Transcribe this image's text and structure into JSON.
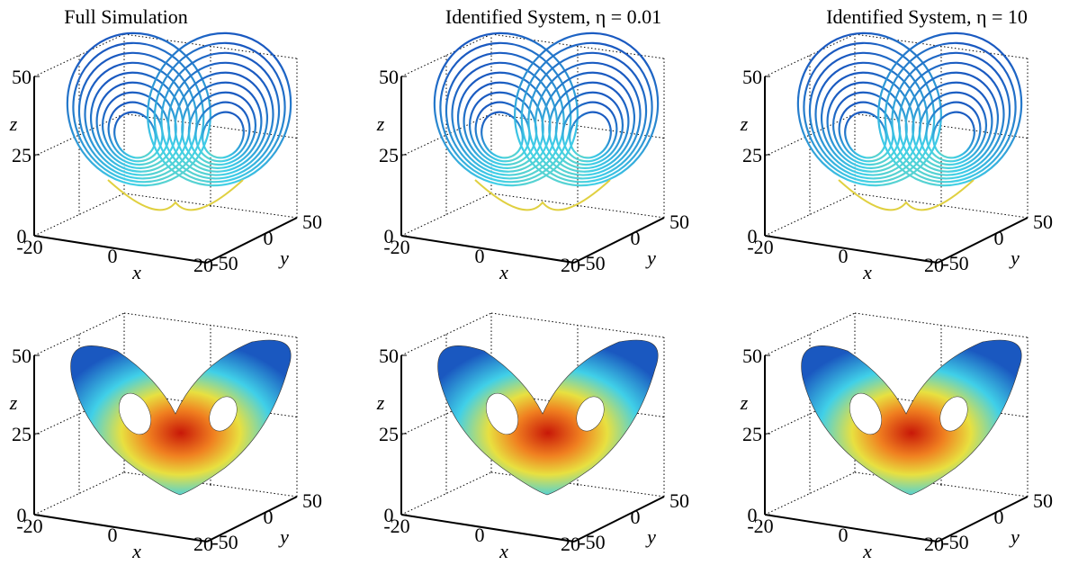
{
  "panels": {
    "titles": [
      "Full Simulation",
      "Identified System, η = 0.01",
      "Identified System, η = 10"
    ]
  },
  "axes": {
    "x_label": "x",
    "y_label": "y",
    "z_label": "z",
    "x_ticks": [
      -20,
      0,
      20
    ],
    "y_ticks": [
      -50,
      0,
      50
    ],
    "z_ticks": [
      0,
      25,
      50
    ]
  }
}
